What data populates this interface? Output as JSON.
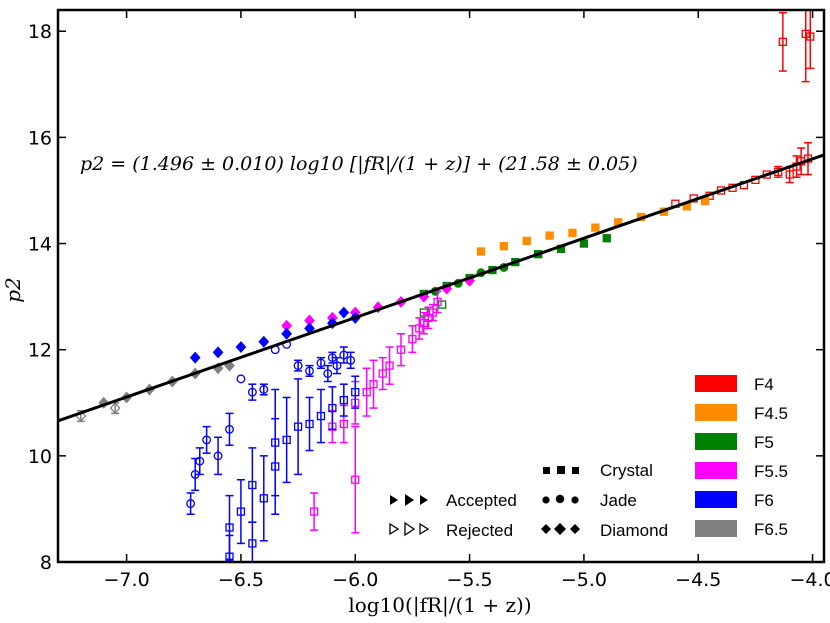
{
  "chart_data": {
    "type": "scatter",
    "xlabel": "log10(|fR|/(1 + z))",
    "ylabel": "p2",
    "xlim": [
      -7.3,
      -3.95
    ],
    "ylim": [
      8,
      18.4
    ],
    "xticks": [
      -7.0,
      -6.5,
      -6.0,
      -5.5,
      -5.0,
      -4.5,
      -4.0
    ],
    "xtick_labels": [
      "−7.0",
      "−6.5",
      "−6.0",
      "−5.5",
      "−5.0",
      "−4.5",
      "−4.0"
    ],
    "yticks": [
      8,
      10,
      12,
      14,
      16,
      18
    ],
    "ytick_labels": [
      "8",
      "10",
      "12",
      "14",
      "16",
      "18"
    ],
    "annotation": "p2 = (1.496 ± 0.010) log10 [|fR|/(1 + z)] + (21.58 ± 0.05)",
    "fit_line": {
      "slope": 1.496,
      "intercept": 21.58
    },
    "legend_colors": [
      {
        "label": "F4",
        "color": "#ff0000"
      },
      {
        "label": "F4.5",
        "color": "#ff8c00"
      },
      {
        "label": "F5",
        "color": "#008000"
      },
      {
        "label": "F5.5",
        "color": "#ff00ff"
      },
      {
        "label": "F6",
        "color": "#0000ff"
      },
      {
        "label": "F6.5",
        "color": "#808080"
      }
    ],
    "legend_markers": {
      "crystal": "Crystal",
      "jade": "Jade",
      "diamond": "Diamond",
      "accepted": "Accepted",
      "rejected": "Rejected"
    },
    "series": [
      {
        "name": "F4 Crystal rejected",
        "color": "#ff0000",
        "marker": "square",
        "filled": false,
        "points": [
          [
            -4.6,
            14.75
          ],
          [
            -4.52,
            14.85
          ],
          [
            -4.45,
            14.9
          ],
          [
            -4.4,
            15.0
          ],
          [
            -4.35,
            15.05
          ],
          [
            -4.3,
            15.1
          ],
          [
            -4.25,
            15.2
          ],
          [
            -4.2,
            15.3
          ],
          [
            -4.15,
            15.35
          ],
          [
            -4.1,
            15.3
          ],
          [
            -4.07,
            15.45
          ],
          [
            -4.05,
            15.55
          ],
          [
            -4.02,
            15.6
          ]
        ],
        "errors": [
          0,
          0,
          0,
          0,
          0,
          0,
          0,
          0,
          0.1,
          0.15,
          0.2,
          0.25,
          0.3
        ]
      },
      {
        "name": "F4 high",
        "color": "#ff0000",
        "marker": "square",
        "filled": false,
        "points": [
          [
            -4.13,
            17.8
          ],
          [
            -4.03,
            17.95
          ],
          [
            -4.01,
            17.9
          ]
        ],
        "errors": [
          0.55,
          0.9,
          0.6
        ]
      },
      {
        "name": "F4.5 Crystal accepted",
        "color": "#ff8c00",
        "marker": "square",
        "filled": true,
        "points": [
          [
            -5.45,
            13.85
          ],
          [
            -5.35,
            13.95
          ],
          [
            -5.25,
            14.05
          ],
          [
            -5.15,
            14.15
          ],
          [
            -5.05,
            14.2
          ],
          [
            -4.95,
            14.3
          ],
          [
            -4.85,
            14.4
          ],
          [
            -4.75,
            14.5
          ],
          [
            -4.65,
            14.6
          ],
          [
            -4.55,
            14.7
          ],
          [
            -4.47,
            14.8
          ]
        ],
        "errors": []
      },
      {
        "name": "F5 Crystal accepted",
        "color": "#008000",
        "marker": "square",
        "filled": true,
        "points": [
          [
            -5.7,
            13.05
          ],
          [
            -5.6,
            13.2
          ],
          [
            -5.5,
            13.35
          ],
          [
            -5.4,
            13.5
          ],
          [
            -5.3,
            13.65
          ],
          [
            -5.2,
            13.8
          ],
          [
            -5.1,
            13.9
          ],
          [
            -5.0,
            14.0
          ],
          [
            -4.9,
            14.1
          ]
        ],
        "errors": []
      },
      {
        "name": "F5 Jade accepted",
        "color": "#008000",
        "marker": "circle",
        "filled": true,
        "points": [
          [
            -5.65,
            13.1
          ],
          [
            -5.55,
            13.25
          ],
          [
            -5.45,
            13.45
          ],
          [
            -5.35,
            13.55
          ]
        ],
        "errors": []
      },
      {
        "name": "F5 rejected",
        "color": "#008000",
        "marker": "square",
        "filled": false,
        "points": [
          [
            -5.7,
            12.7
          ],
          [
            -5.62,
            12.85
          ]
        ],
        "errors": [
          0,
          0
        ]
      },
      {
        "name": "F5.5 Diamond accepted",
        "color": "#ff00ff",
        "marker": "diamond",
        "filled": true,
        "points": [
          [
            -6.3,
            12.45
          ],
          [
            -6.2,
            12.55
          ],
          [
            -6.1,
            12.6
          ],
          [
            -6.0,
            12.7
          ],
          [
            -5.9,
            12.8
          ],
          [
            -5.8,
            12.9
          ],
          [
            -5.7,
            13.0
          ],
          [
            -5.6,
            13.15
          ],
          [
            -5.5,
            13.3
          ]
        ],
        "errors": []
      },
      {
        "name": "F5.5 Crystal rejected",
        "color": "#ff00ff",
        "marker": "square",
        "filled": false,
        "points": [
          [
            -5.64,
            12.9
          ],
          [
            -5.66,
            12.7
          ],
          [
            -5.68,
            12.6
          ],
          [
            -5.7,
            12.5
          ],
          [
            -5.72,
            12.4
          ],
          [
            -5.75,
            12.2
          ],
          [
            -5.8,
            12.0
          ],
          [
            -5.85,
            11.7
          ],
          [
            -5.88,
            11.55
          ],
          [
            -5.92,
            11.35
          ],
          [
            -5.95,
            11.2
          ],
          [
            -6.0,
            11.0
          ],
          [
            -6.05,
            10.6
          ],
          [
            -6.1,
            10.55
          ],
          [
            -6.18,
            8.95
          ],
          [
            -6.0,
            9.55
          ]
        ],
        "errors": [
          0.2,
          0.15,
          0.2,
          0.2,
          0.2,
          0.25,
          0.3,
          0.35,
          0.3,
          0.45,
          0.45,
          0.4,
          0.35,
          0.3,
          0.35,
          1.0
        ]
      },
      {
        "name": "F6 Diamond accepted",
        "color": "#0000ff",
        "marker": "diamond",
        "filled": true,
        "points": [
          [
            -6.7,
            11.85
          ],
          [
            -6.6,
            11.95
          ],
          [
            -6.5,
            12.05
          ],
          [
            -6.4,
            12.15
          ],
          [
            -6.3,
            12.3
          ],
          [
            -6.2,
            12.4
          ],
          [
            -6.1,
            12.5
          ],
          [
            -6.0,
            12.6
          ],
          [
            -6.05,
            12.7
          ]
        ],
        "errors": []
      },
      {
        "name": "F6 Jade rejected",
        "color": "#0000ff",
        "marker": "circle",
        "filled": false,
        "points": [
          [
            -6.72,
            9.1
          ],
          [
            -6.7,
            9.65
          ],
          [
            -6.68,
            9.9
          ],
          [
            -6.65,
            10.3
          ],
          [
            -6.6,
            10.0
          ],
          [
            -6.55,
            10.5
          ],
          [
            -6.5,
            11.45
          ],
          [
            -6.45,
            11.2
          ],
          [
            -6.4,
            11.25
          ],
          [
            -6.35,
            12.0
          ],
          [
            -6.3,
            12.1
          ],
          [
            -6.25,
            11.7
          ],
          [
            -6.2,
            11.6
          ],
          [
            -6.15,
            11.75
          ],
          [
            -6.1,
            11.85
          ],
          [
            -6.05,
            11.9
          ],
          [
            -6.02,
            11.8
          ],
          [
            -6.08,
            11.7
          ],
          [
            -6.12,
            11.55
          ]
        ],
        "errors": [
          0.2,
          0.3,
          0.25,
          0.25,
          0.35,
          0.3,
          0,
          0.15,
          0.1,
          0,
          0,
          0.1,
          0.1,
          0.1,
          0.1,
          0.15,
          0.15,
          0.15,
          0.15
        ]
      },
      {
        "name": "F6 Crystal rejected",
        "color": "#0000ff",
        "marker": "square",
        "filled": false,
        "points": [
          [
            -6.55,
            8.65
          ],
          [
            -6.5,
            8.95
          ],
          [
            -6.45,
            9.45
          ],
          [
            -6.4,
            9.2
          ],
          [
            -6.35,
            10.25
          ],
          [
            -6.3,
            10.3
          ],
          [
            -6.25,
            10.55
          ],
          [
            -6.2,
            10.6
          ],
          [
            -6.15,
            10.75
          ],
          [
            -6.1,
            10.9
          ],
          [
            -6.05,
            11.05
          ],
          [
            -6.0,
            11.2
          ],
          [
            -6.55,
            8.1
          ],
          [
            -6.45,
            8.35
          ],
          [
            -6.35,
            9.8
          ]
        ],
        "errors": [
          0.6,
          0.6,
          0.7,
          0.8,
          1.0,
          0.8,
          0.9,
          0.5,
          0.5,
          0.4,
          0.3,
          0.3,
          0.4,
          0.4,
          0.9
        ]
      },
      {
        "name": "F6.5 Diamond accepted",
        "color": "#808080",
        "marker": "diamond",
        "filled": true,
        "points": [
          [
            -7.1,
            11.0
          ],
          [
            -7.0,
            11.1
          ],
          [
            -6.9,
            11.25
          ],
          [
            -6.8,
            11.4
          ],
          [
            -6.7,
            11.55
          ],
          [
            -6.6,
            11.65
          ],
          [
            -6.55,
            11.7
          ]
        ],
        "errors": []
      },
      {
        "name": "F6.5 Diamond rejected",
        "color": "#808080",
        "marker": "diamond",
        "filled": false,
        "points": [
          [
            -7.2,
            10.75
          ],
          [
            -7.05,
            10.9
          ]
        ],
        "errors": [
          0.1,
          0.1
        ]
      }
    ]
  }
}
